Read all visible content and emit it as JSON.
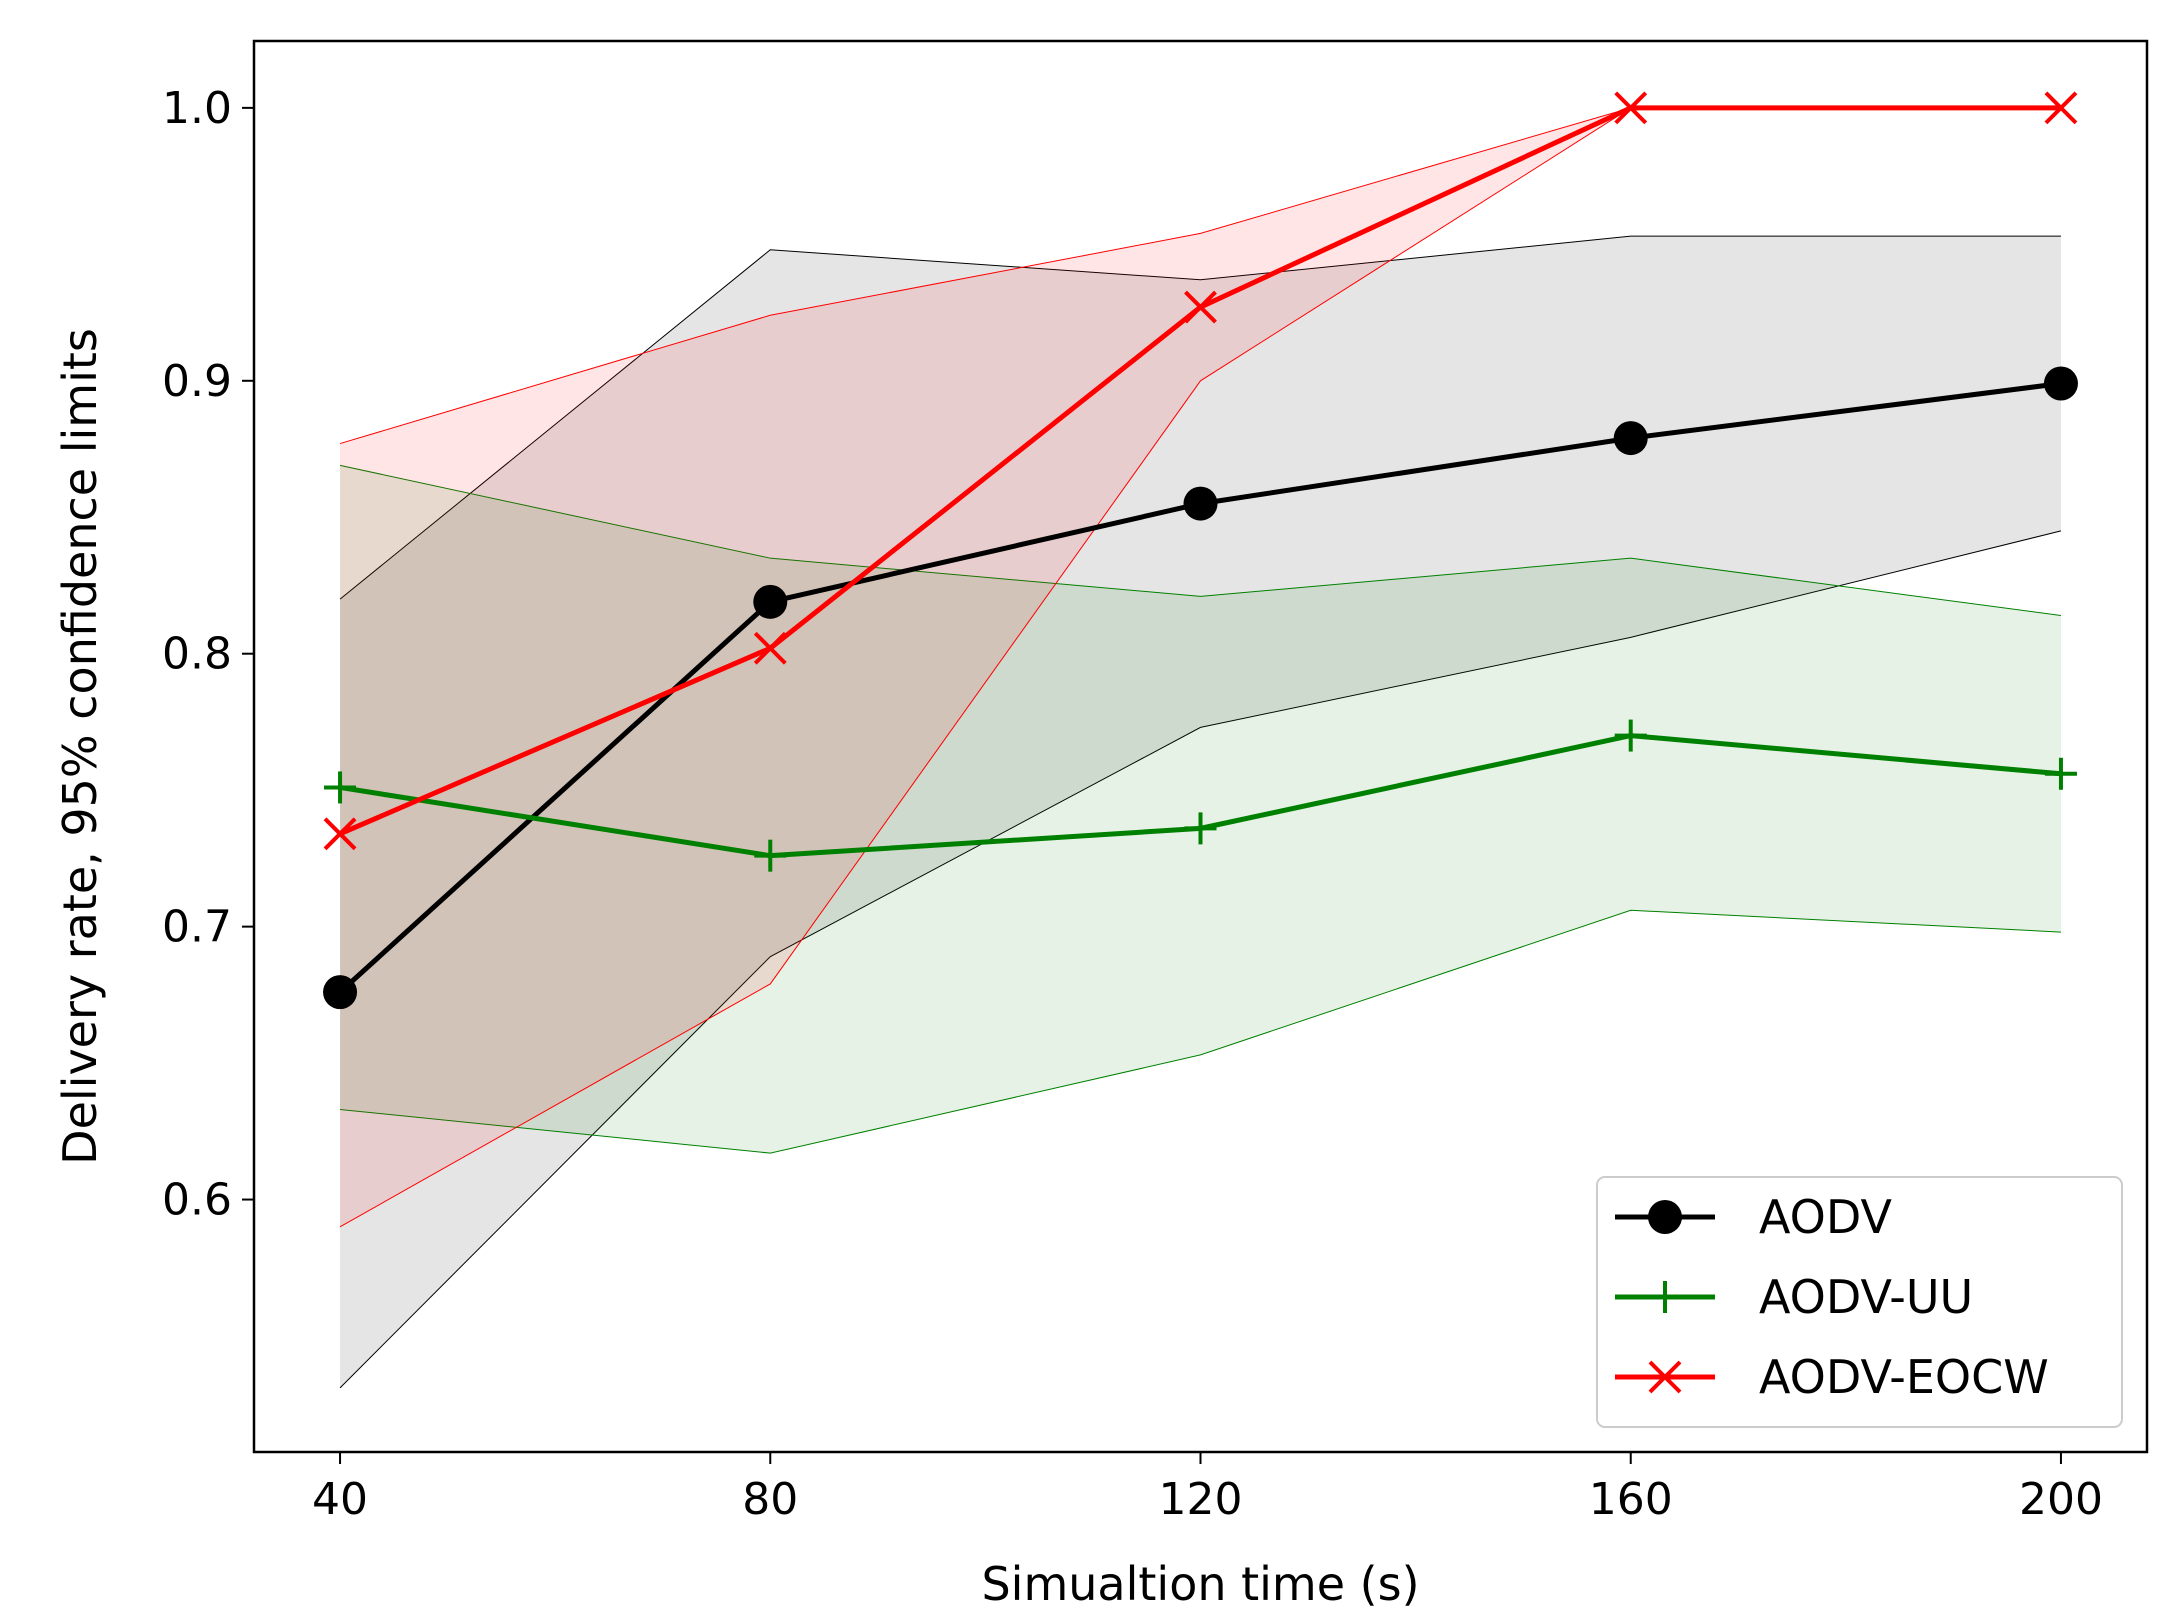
{
  "chart_data": {
    "type": "line",
    "title": "",
    "xlabel": "Simualtion time (s)",
    "ylabel": "Delivery rate, 95% confidence limits",
    "x": [
      40,
      80,
      120,
      160,
      200
    ],
    "xlim": [
      32,
      208
    ],
    "ylim": [
      0.5075,
      1.0245
    ],
    "xticks": [
      40,
      80,
      120,
      160,
      200
    ],
    "yticks": [
      0.6,
      0.7,
      0.8,
      0.9,
      1.0
    ],
    "ytick_labels": [
      "0.6",
      "0.7",
      "0.8",
      "0.9",
      "1.0"
    ],
    "grid": false,
    "legend_position": "lower-right",
    "series": [
      {
        "name": "AODV",
        "color": "#000000",
        "marker": "circle",
        "values": [
          0.676,
          0.819,
          0.855,
          0.879,
          0.899
        ],
        "ci_lower": [
          0.531,
          0.689,
          0.773,
          0.806,
          0.845
        ],
        "ci_upper": [
          0.82,
          0.948,
          0.937,
          0.953,
          0.953
        ]
      },
      {
        "name": "AODV-UU",
        "color": "#008000",
        "marker": "plus",
        "values": [
          0.751,
          0.726,
          0.736,
          0.77,
          0.756
        ],
        "ci_lower": [
          0.633,
          0.617,
          0.653,
          0.706,
          0.698
        ],
        "ci_upper": [
          0.869,
          0.835,
          0.821,
          0.835,
          0.814
        ]
      },
      {
        "name": "AODV-EOCW",
        "color": "#ff0000",
        "marker": "x",
        "values": [
          0.734,
          0.802,
          0.927,
          1.0,
          1.0
        ],
        "ci_lower": [
          0.59,
          0.679,
          0.9,
          1.0,
          1.0
        ],
        "ci_upper": [
          0.877,
          0.924,
          0.954,
          1.0,
          1.0
        ]
      }
    ]
  }
}
